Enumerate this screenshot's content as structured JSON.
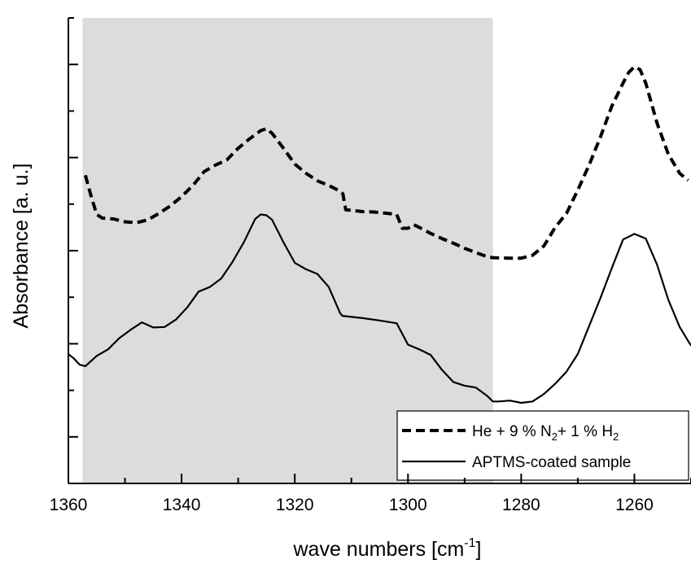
{
  "chart_data": {
    "type": "line",
    "xlabel": "wave numbers [cm",
    "xlabel_sup": "-1",
    "xlabel_close": "]",
    "ylabel": "Absorbance [a. u.]",
    "xlim": [
      1360,
      1250
    ],
    "ylim": [
      0,
      1
    ],
    "x_ticks": [
      1360,
      1340,
      1320,
      1300,
      1280,
      1260
    ],
    "y_tick_labels_shown": false,
    "shaded_region": {
      "x_from": 1357.5,
      "x_to": 1285,
      "color": "#dcdcdc"
    },
    "legend": {
      "placement": "bottom-right",
      "entries": [
        {
          "parts": [
            "He + 9 % N",
            "2",
            "+ 1 % H",
            "2"
          ]
        },
        {
          "parts": [
            "APTMS-coated sample"
          ]
        }
      ]
    },
    "series": [
      {
        "style": "dashed",
        "x": [
          1357,
          1356,
          1355,
          1354,
          1352,
          1350,
          1348,
          1346,
          1344,
          1342,
          1340,
          1338,
          1336,
          1334,
          1332,
          1330,
          1328,
          1326,
          1325,
          1324,
          1322,
          1320,
          1318,
          1316,
          1314,
          1312,
          1311.5,
          1311,
          1308,
          1306,
          1302,
          1301,
          1300,
          1299,
          1298,
          1296,
          1294,
          1292,
          1290,
          1288,
          1286,
          1285,
          1282,
          1280,
          1278,
          1276,
          1274,
          1272,
          1270,
          1268,
          1266,
          1264,
          1262,
          1261,
          1260,
          1259,
          1258,
          1256,
          1254,
          1252,
          1250.5
        ],
        "y": [
          0.662,
          0.618,
          0.578,
          0.57,
          0.568,
          0.562,
          0.56,
          0.566,
          0.58,
          0.596,
          0.616,
          0.64,
          0.67,
          0.684,
          0.695,
          0.72,
          0.74,
          0.758,
          0.762,
          0.752,
          0.72,
          0.686,
          0.666,
          0.65,
          0.64,
          0.628,
          0.622,
          0.588,
          0.584,
          0.583,
          0.578,
          0.548,
          0.548,
          0.556,
          0.55,
          0.537,
          0.526,
          0.516,
          0.505,
          0.496,
          0.487,
          0.485,
          0.484,
          0.484,
          0.49,
          0.51,
          0.55,
          0.58,
          0.63,
          0.684,
          0.744,
          0.81,
          0.86,
          0.883,
          0.895,
          0.889,
          0.86,
          0.774,
          0.707,
          0.666,
          0.651
        ]
      },
      {
        "style": "solid",
        "x": [
          1360,
          1359,
          1358,
          1357,
          1355,
          1353,
          1351,
          1349,
          1347,
          1345,
          1343,
          1341,
          1339,
          1337,
          1335,
          1333,
          1331,
          1329,
          1327,
          1326,
          1325,
          1324,
          1322,
          1320,
          1318,
          1316,
          1314,
          1312,
          1311.6,
          1308,
          1305,
          1302,
          1300,
          1298,
          1296,
          1294,
          1292,
          1290,
          1288,
          1286,
          1285,
          1284,
          1282,
          1280,
          1278,
          1276,
          1274,
          1272,
          1270,
          1268,
          1266,
          1264,
          1262,
          1260,
          1258,
          1256,
          1254,
          1252,
          1250
        ],
        "y": [
          0.278,
          0.268,
          0.255,
          0.252,
          0.274,
          0.288,
          0.312,
          0.33,
          0.346,
          0.335,
          0.336,
          0.352,
          0.378,
          0.412,
          0.422,
          0.44,
          0.476,
          0.518,
          0.568,
          0.578,
          0.576,
          0.566,
          0.518,
          0.474,
          0.46,
          0.45,
          0.422,
          0.366,
          0.36,
          0.355,
          0.35,
          0.344,
          0.298,
          0.288,
          0.276,
          0.244,
          0.218,
          0.21,
          0.206,
          0.188,
          0.176,
          0.176,
          0.178,
          0.173,
          0.176,
          0.192,
          0.214,
          0.24,
          0.278,
          0.338,
          0.398,
          0.462,
          0.524,
          0.536,
          0.526,
          0.47,
          0.394,
          0.336,
          0.296
        ]
      }
    ]
  }
}
